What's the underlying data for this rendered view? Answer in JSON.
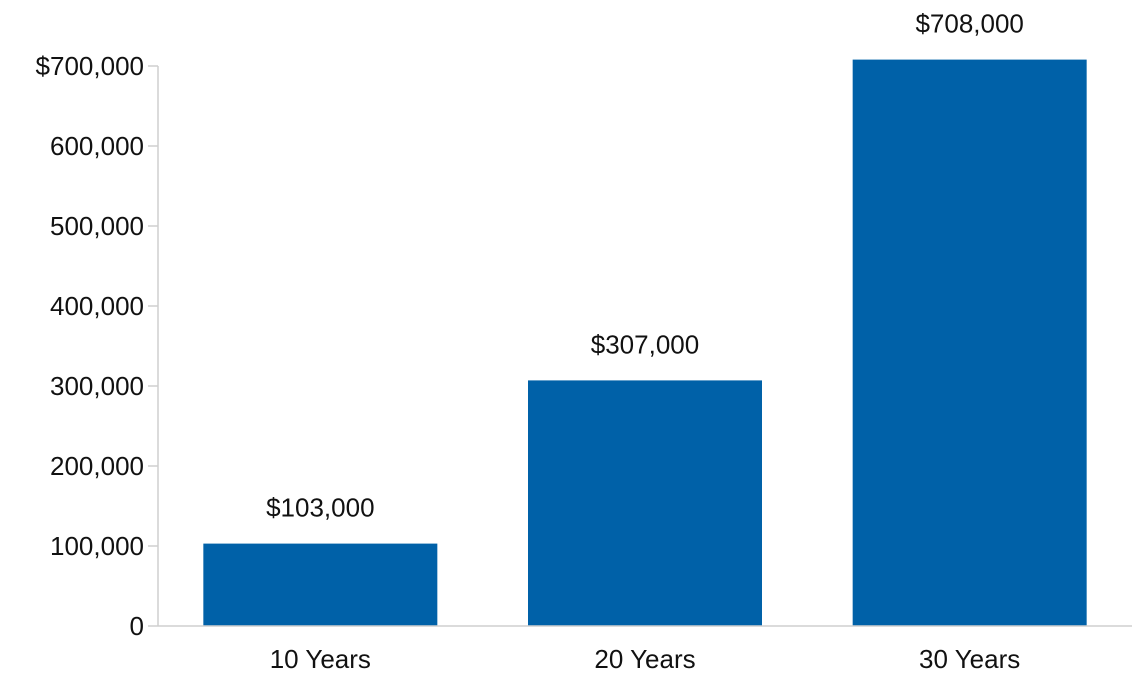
{
  "chart_data": {
    "type": "bar",
    "categories": [
      "10 Years",
      "20 Years",
      "30 Years"
    ],
    "values": [
      103000,
      307000,
      708000
    ],
    "data_labels": [
      "$103,000",
      "$307,000",
      "$708,000"
    ],
    "ylim": [
      0,
      700000
    ],
    "y_ticks": [
      0,
      100000,
      200000,
      300000,
      400000,
      500000,
      600000,
      700000
    ],
    "y_tick_labels": [
      "0",
      "100,000",
      "200,000",
      "300,000",
      "400,000",
      "500,000",
      "600,000",
      "$700,000"
    ],
    "grid": false,
    "bar_color": "#0061a8"
  }
}
